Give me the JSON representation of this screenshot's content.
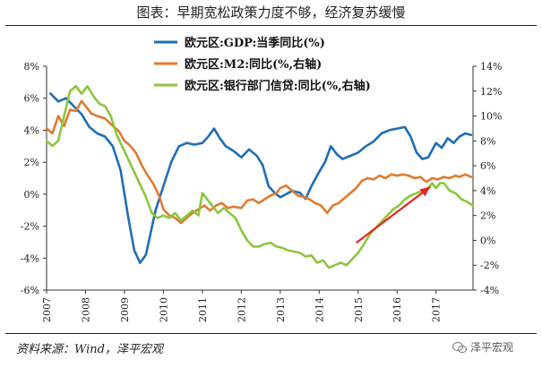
{
  "title": "图表：早期宽松政策力度不够，经济复苏缓慢",
  "source": "资料来源：Wind，泽平宏观",
  "watermark": "泽平宏观",
  "chart_data": {
    "type": "line",
    "x_axis": {
      "ticks": [
        "2007",
        "2008",
        "2009",
        "2010",
        "2011",
        "2012",
        "2013",
        "2014",
        "2015",
        "2016",
        "2017"
      ],
      "range": [
        2007.0,
        2017.95
      ]
    },
    "y_left": {
      "ticks": [
        "8%",
        "6%",
        "4%",
        "2%",
        "0%",
        "-2%",
        "-4%",
        "-6%"
      ],
      "ylim": [
        -6,
        8
      ]
    },
    "y_right": {
      "ticks": [
        "14%",
        "12%",
        "10%",
        "8%",
        "6%",
        "4%",
        "2%",
        "0%",
        "-2%",
        "-4%"
      ],
      "ylim": [
        -4,
        14
      ]
    },
    "grid": false,
    "legend_position": "top-center",
    "series": [
      {
        "name": "欧元区:GDP:当季同比(%)",
        "axis": "left",
        "color": "#1f6db4",
        "points": [
          [
            2007.1,
            6.3
          ],
          [
            2007.3,
            5.8
          ],
          [
            2007.5,
            6.0
          ],
          [
            2007.7,
            5.5
          ],
          [
            2007.9,
            5.0
          ],
          [
            2008.1,
            4.2
          ],
          [
            2008.3,
            3.8
          ],
          [
            2008.5,
            3.6
          ],
          [
            2008.7,
            3.0
          ],
          [
            2008.9,
            1.5
          ],
          [
            2009.1,
            -1.5
          ],
          [
            2009.25,
            -3.5
          ],
          [
            2009.4,
            -4.3
          ],
          [
            2009.55,
            -3.8
          ],
          [
            2009.8,
            -1.0
          ],
          [
            2010.0,
            0.5
          ],
          [
            2010.2,
            2.0
          ],
          [
            2010.4,
            3.0
          ],
          [
            2010.6,
            3.2
          ],
          [
            2010.8,
            3.1
          ],
          [
            2011.0,
            3.2
          ],
          [
            2011.15,
            3.6
          ],
          [
            2011.3,
            4.1
          ],
          [
            2011.45,
            3.5
          ],
          [
            2011.6,
            3.0
          ],
          [
            2011.8,
            2.7
          ],
          [
            2012.0,
            2.3
          ],
          [
            2012.2,
            2.8
          ],
          [
            2012.4,
            2.4
          ],
          [
            2012.55,
            1.8
          ],
          [
            2012.7,
            0.5
          ],
          [
            2012.85,
            0.1
          ],
          [
            2013.0,
            -0.2
          ],
          [
            2013.15,
            0.0
          ],
          [
            2013.3,
            0.2
          ],
          [
            2013.5,
            0.1
          ],
          [
            2013.65,
            -0.3
          ],
          [
            2013.8,
            0.5
          ],
          [
            2014.0,
            1.4
          ],
          [
            2014.15,
            2.0
          ],
          [
            2014.3,
            3.0
          ],
          [
            2014.45,
            2.5
          ],
          [
            2014.6,
            2.2
          ],
          [
            2014.8,
            2.4
          ],
          [
            2015.0,
            2.6
          ],
          [
            2015.2,
            3.0
          ],
          [
            2015.4,
            3.3
          ],
          [
            2015.6,
            3.8
          ],
          [
            2015.8,
            4.0
          ],
          [
            2016.0,
            4.1
          ],
          [
            2016.2,
            4.2
          ],
          [
            2016.35,
            3.6
          ],
          [
            2016.5,
            2.6
          ],
          [
            2016.65,
            2.2
          ],
          [
            2016.8,
            2.3
          ],
          [
            2017.0,
            3.2
          ],
          [
            2017.15,
            2.9
          ],
          [
            2017.3,
            3.5
          ],
          [
            2017.45,
            3.2
          ],
          [
            2017.6,
            3.6
          ],
          [
            2017.75,
            3.8
          ],
          [
            2017.9,
            3.7
          ]
        ]
      },
      {
        "name": "欧元区:M2:同比(%,右轴)",
        "axis": "right",
        "color": "#e07a2f",
        "points": [
          [
            2007.0,
            9.0
          ],
          [
            2007.15,
            8.6
          ],
          [
            2007.3,
            10.0
          ],
          [
            2007.45,
            9.2
          ],
          [
            2007.6,
            10.5
          ],
          [
            2007.75,
            10.4
          ],
          [
            2007.9,
            11.2
          ],
          [
            2008.0,
            10.8
          ],
          [
            2008.15,
            10.2
          ],
          [
            2008.3,
            10.0
          ],
          [
            2008.5,
            9.8
          ],
          [
            2008.7,
            9.2
          ],
          [
            2008.85,
            8.8
          ],
          [
            2009.0,
            8.0
          ],
          [
            2009.15,
            7.6
          ],
          [
            2009.3,
            7.0
          ],
          [
            2009.45,
            6.0
          ],
          [
            2009.6,
            5.2
          ],
          [
            2009.75,
            4.5
          ],
          [
            2009.9,
            3.5
          ],
          [
            2010.0,
            2.5
          ],
          [
            2010.15,
            2.0
          ],
          [
            2010.3,
            1.8
          ],
          [
            2010.45,
            1.4
          ],
          [
            2010.6,
            1.8
          ],
          [
            2010.75,
            2.2
          ],
          [
            2010.9,
            2.5
          ],
          [
            2011.05,
            2.8
          ],
          [
            2011.2,
            2.4
          ],
          [
            2011.35,
            2.8
          ],
          [
            2011.5,
            3.0
          ],
          [
            2011.65,
            2.6
          ],
          [
            2011.8,
            2.7
          ],
          [
            2012.0,
            2.6
          ],
          [
            2012.15,
            3.2
          ],
          [
            2012.3,
            3.3
          ],
          [
            2012.45,
            3.0
          ],
          [
            2012.6,
            3.3
          ],
          [
            2012.75,
            3.6
          ],
          [
            2012.9,
            3.8
          ],
          [
            2013.0,
            4.2
          ],
          [
            2013.15,
            4.4
          ],
          [
            2013.3,
            4.0
          ],
          [
            2013.45,
            3.6
          ],
          [
            2013.6,
            3.5
          ],
          [
            2013.75,
            3.3
          ],
          [
            2013.9,
            3.0
          ],
          [
            2014.05,
            2.8
          ],
          [
            2014.2,
            2.2
          ],
          [
            2014.35,
            2.8
          ],
          [
            2014.5,
            3.0
          ],
          [
            2014.65,
            3.4
          ],
          [
            2014.8,
            3.8
          ],
          [
            2014.95,
            4.2
          ],
          [
            2015.1,
            4.8
          ],
          [
            2015.25,
            5.0
          ],
          [
            2015.4,
            4.9
          ],
          [
            2015.55,
            5.2
          ],
          [
            2015.7,
            5.0
          ],
          [
            2015.85,
            5.3
          ],
          [
            2016.0,
            5.2
          ],
          [
            2016.15,
            5.3
          ],
          [
            2016.3,
            5.2
          ],
          [
            2016.45,
            5.0
          ],
          [
            2016.6,
            5.1
          ],
          [
            2016.75,
            4.7
          ],
          [
            2016.9,
            5.0
          ],
          [
            2017.05,
            4.9
          ],
          [
            2017.2,
            5.1
          ],
          [
            2017.35,
            5.0
          ],
          [
            2017.5,
            5.2
          ],
          [
            2017.6,
            5.1
          ],
          [
            2017.75,
            5.3
          ],
          [
            2017.9,
            5.1
          ]
        ]
      },
      {
        "name": "欧元区:银行部门信贷:同比(%,右轴)",
        "axis": "right",
        "color": "#8cc63f",
        "points": [
          [
            2007.0,
            8.0
          ],
          [
            2007.15,
            7.6
          ],
          [
            2007.3,
            8.0
          ],
          [
            2007.45,
            10.0
          ],
          [
            2007.6,
            12.0
          ],
          [
            2007.75,
            12.4
          ],
          [
            2007.9,
            11.8
          ],
          [
            2008.05,
            12.4
          ],
          [
            2008.2,
            11.6
          ],
          [
            2008.35,
            11.0
          ],
          [
            2008.5,
            10.8
          ],
          [
            2008.65,
            10.0
          ],
          [
            2008.8,
            8.5
          ],
          [
            2008.95,
            7.5
          ],
          [
            2009.1,
            6.5
          ],
          [
            2009.25,
            5.5
          ],
          [
            2009.4,
            4.5
          ],
          [
            2009.55,
            3.5
          ],
          [
            2009.7,
            2.2
          ],
          [
            2009.85,
            1.8
          ],
          [
            2010.0,
            2.0
          ],
          [
            2010.15,
            1.8
          ],
          [
            2010.3,
            2.2
          ],
          [
            2010.45,
            1.6
          ],
          [
            2010.6,
            2.0
          ],
          [
            2010.75,
            2.4
          ],
          [
            2010.9,
            2.0
          ],
          [
            2011.0,
            3.8
          ],
          [
            2011.1,
            3.4
          ],
          [
            2011.25,
            2.8
          ],
          [
            2011.4,
            2.2
          ],
          [
            2011.55,
            2.6
          ],
          [
            2011.7,
            2.2
          ],
          [
            2011.85,
            1.8
          ],
          [
            2012.0,
            0.8
          ],
          [
            2012.15,
            0.0
          ],
          [
            2012.3,
            -0.5
          ],
          [
            2012.45,
            -0.5
          ],
          [
            2012.6,
            -0.3
          ],
          [
            2012.75,
            -0.2
          ],
          [
            2012.9,
            -0.5
          ],
          [
            2013.05,
            -0.6
          ],
          [
            2013.2,
            -0.8
          ],
          [
            2013.35,
            -0.9
          ],
          [
            2013.5,
            -1.0
          ],
          [
            2013.65,
            -1.3
          ],
          [
            2013.8,
            -1.2
          ],
          [
            2013.95,
            -1.8
          ],
          [
            2014.1,
            -1.6
          ],
          [
            2014.25,
            -2.2
          ],
          [
            2014.4,
            -2.0
          ],
          [
            2014.55,
            -1.8
          ],
          [
            2014.7,
            -2.0
          ],
          [
            2014.85,
            -1.5
          ],
          [
            2015.0,
            -1.0
          ],
          [
            2015.15,
            -0.3
          ],
          [
            2015.3,
            0.5
          ],
          [
            2015.45,
            1.0
          ],
          [
            2015.6,
            1.5
          ],
          [
            2015.75,
            2.0
          ],
          [
            2015.9,
            2.5
          ],
          [
            2016.05,
            2.8
          ],
          [
            2016.2,
            3.3
          ],
          [
            2016.35,
            3.6
          ],
          [
            2016.5,
            3.8
          ],
          [
            2016.65,
            4.0
          ],
          [
            2016.8,
            4.2
          ],
          [
            2016.9,
            4.6
          ],
          [
            2017.0,
            4.2
          ],
          [
            2017.1,
            4.6
          ],
          [
            2017.2,
            4.6
          ],
          [
            2017.35,
            4.0
          ],
          [
            2017.5,
            3.8
          ],
          [
            2017.65,
            3.3
          ],
          [
            2017.8,
            3.1
          ],
          [
            2017.95,
            2.8
          ]
        ]
      }
    ],
    "annotation": {
      "type": "arrow",
      "color": "#e52420",
      "axis": "right",
      "from": [
        2014.95,
        -0.2
      ],
      "to": [
        2016.85,
        4.3
      ]
    }
  }
}
